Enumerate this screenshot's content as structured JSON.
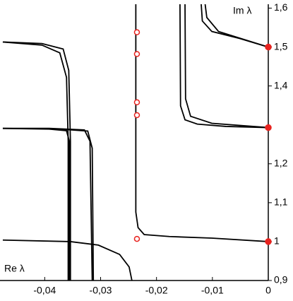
{
  "chart_data": {
    "type": "line",
    "x_label": "Re λ",
    "y_label": "Im λ",
    "xlim": [
      -0.048,
      0
    ],
    "ylim": [
      0.9,
      1.61
    ],
    "xticks": [
      {
        "value": -0.04,
        "label": "-0,04"
      },
      {
        "value": -0.03,
        "label": "-0,03"
      },
      {
        "value": -0.02,
        "label": "-0,02"
      },
      {
        "value": -0.01,
        "label": "-0,01"
      },
      0
    ],
    "yticks": [
      {
        "value": 0.9,
        "label": "0,9"
      },
      1,
      {
        "value": 1.1,
        "label": "1,1"
      },
      {
        "value": 1.2,
        "label": "1,2"
      },
      {
        "value": 1.4,
        "label": "1,4"
      },
      {
        "value": 1.5,
        "label": "1,5"
      },
      {
        "value": 1.6,
        "label": "1,6"
      }
    ],
    "series": [
      {
        "style": "line",
        "color": "#000000",
        "x": [
          -0.0475,
          -0.0405,
          -0.0367,
          -0.0357,
          -0.0354,
          -0.0354
        ],
        "values": [
          1.513,
          1.509,
          1.495,
          1.44,
          1.258,
          0.9
        ]
      },
      {
        "style": "line",
        "color": "#000000",
        "x": [
          -0.0475,
          -0.0405,
          -0.0373,
          -0.0361,
          -0.0358,
          -0.0358
        ],
        "values": [
          1.513,
          1.505,
          1.485,
          1.422,
          1.258,
          0.9
        ]
      },
      {
        "style": "line",
        "color": "#000000",
        "x": [
          -0.0475,
          -0.0392,
          -0.0361,
          -0.0356,
          -0.0356
        ],
        "values": [
          1.291,
          1.289,
          1.285,
          1.258,
          0.9
        ]
      },
      {
        "style": "line",
        "color": "#000000",
        "x": [
          -0.0475,
          -0.0392,
          -0.0329,
          -0.0319,
          -0.0315
        ],
        "values": [
          1.291,
          1.291,
          1.287,
          1.258,
          0.9
        ]
      },
      {
        "style": "line",
        "color": "#000000",
        "x": [
          -0.0373,
          -0.0323,
          -0.0315,
          -0.0313
        ],
        "values": [
          1.289,
          1.284,
          1.24,
          0.9
        ]
      },
      {
        "style": "line",
        "color": "#000000",
        "x": [
          -0.0475,
          -0.0354,
          -0.0304,
          -0.0266,
          -0.0249,
          -0.0244
        ],
        "values": [
          1.004,
          1.0,
          0.991,
          0.967,
          0.935,
          0.9
        ]
      },
      {
        "style": "line",
        "color": "#000000",
        "x": [
          -0.0237,
          -0.0237,
          -0.0233,
          -0.0222,
          -0.0177,
          -0.0101,
          0
        ],
        "values": [
          1.61,
          1.076,
          1.036,
          1.018,
          1.013,
          1.009,
          1.0
        ]
      },
      {
        "style": "line",
        "color": "#000000",
        "x": [
          -0.0158,
          -0.0157,
          -0.0149,
          -0.0127,
          -0.0076,
          0
        ],
        "values": [
          1.61,
          1.349,
          1.313,
          1.302,
          1.296,
          1.293
        ]
      },
      {
        "style": "line",
        "color": "#000000",
        "x": [
          -0.0149,
          -0.0148,
          -0.0139,
          -0.0101,
          0
        ],
        "values": [
          1.61,
          1.367,
          1.322,
          1.304,
          1.293
        ]
      },
      {
        "style": "line",
        "color": "#000000",
        "x": [
          -0.012,
          -0.0118,
          -0.0101,
          -0.0051,
          0
        ],
        "values": [
          1.61,
          1.567,
          1.54,
          1.522,
          1.5
        ]
      },
      {
        "style": "line",
        "color": "#000000",
        "x": [
          -0.0113,
          -0.011,
          -0.0089,
          0
        ],
        "values": [
          1.61,
          1.576,
          1.54,
          1.5
        ]
      },
      {
        "style": "open",
        "color": "#e8231f",
        "x": [
          -0.0235,
          -0.0235,
          -0.0235,
          -0.0235,
          -0.0235
        ],
        "values": [
          1.538,
          1.482,
          1.358,
          1.325,
          1.007
        ]
      },
      {
        "style": "filled",
        "color": "#e8231f",
        "x": [
          0,
          0,
          0
        ],
        "values": [
          1.5,
          1.293,
          1.0
        ]
      }
    ]
  }
}
